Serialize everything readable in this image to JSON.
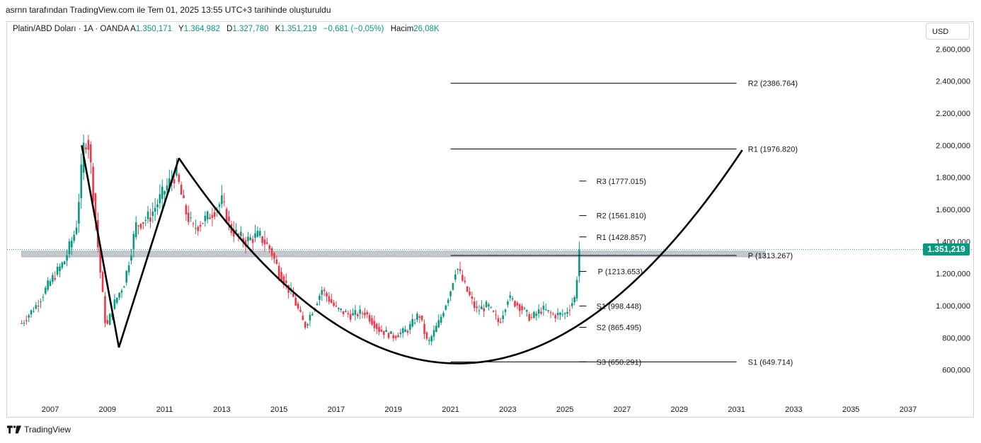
{
  "caption": "asrnn tarafından TradingView.com ile Tem 01, 2025 13:55 UTC+3 tarihinde oluşturuldu",
  "legend": {
    "symbol": "Platin/ABD Doları · 1A · OANDA",
    "open_label": "A",
    "open": "1.350,171",
    "high_label": "Y",
    "high": "1.364,982",
    "low_label": "D",
    "low": "1.327,780",
    "close_label": "K",
    "close": "1.351,219",
    "change": "−0,681 (−0,05%)",
    "volume_label": "Hacim",
    "volume": "26,08K"
  },
  "currency": "USD",
  "last_price": "1.351,219",
  "footer": {
    "brand": "TradingView"
  },
  "colors": {
    "up": "#089981",
    "down": "#f23645",
    "accent": "#089981"
  },
  "chart_data": {
    "type": "candlestick",
    "y_ticks": [
      "600,000",
      "800,000",
      "1.000,000",
      "1.200,000",
      "1.400,000",
      "1.600,000",
      "1.800,000",
      "2.000,000",
      "2.200,000",
      "2.400,000",
      "2.600,000"
    ],
    "y_tick_values": [
      600,
      800,
      1000,
      1200,
      1400,
      1600,
      1800,
      2000,
      2200,
      2400,
      2600
    ],
    "x_ticks": [
      "2007",
      "2009",
      "2011",
      "2013",
      "2015",
      "2017",
      "2019",
      "2021",
      "2023",
      "2025",
      "2027",
      "2029",
      "2031",
      "2033",
      "2035",
      "2037"
    ],
    "x_tick_years": [
      2007,
      2009,
      2011,
      2013,
      2015,
      2017,
      2019,
      2021,
      2023,
      2025,
      2027,
      2029,
      2031,
      2033,
      2035,
      2037
    ],
    "price_series": [
      [
        2006.0,
        890
      ],
      [
        2006.5,
        1000
      ],
      [
        2007.0,
        1150
      ],
      [
        2007.5,
        1280
      ],
      [
        2007.9,
        1480
      ],
      [
        2008.2,
        2050
      ],
      [
        2008.35,
        2000
      ],
      [
        2008.7,
        1300
      ],
      [
        2008.95,
        850
      ],
      [
        2009.2,
        1000
      ],
      [
        2009.6,
        1150
      ],
      [
        2010.0,
        1500
      ],
      [
        2010.5,
        1560
      ],
      [
        2011.0,
        1720
      ],
      [
        2011.4,
        1830
      ],
      [
        2011.7,
        1600
      ],
      [
        2012.0,
        1480
      ],
      [
        2012.5,
        1550
      ],
      [
        2013.0,
        1650
      ],
      [
        2013.3,
        1480
      ],
      [
        2013.8,
        1400
      ],
      [
        2014.3,
        1440
      ],
      [
        2014.7,
        1350
      ],
      [
        2015.0,
        1210
      ],
      [
        2015.5,
        1050
      ],
      [
        2015.9,
        870
      ],
      [
        2016.5,
        1100
      ],
      [
        2017.0,
        980
      ],
      [
        2017.5,
        940
      ],
      [
        2018.0,
        960
      ],
      [
        2018.5,
        850
      ],
      [
        2019.0,
        810
      ],
      [
        2019.5,
        850
      ],
      [
        2019.9,
        950
      ],
      [
        2020.2,
        760
      ],
      [
        2020.6,
        900
      ],
      [
        2021.0,
        1100
      ],
      [
        2021.2,
        1250
      ],
      [
        2021.5,
        1120
      ],
      [
        2021.9,
        970
      ],
      [
        2022.3,
        1000
      ],
      [
        2022.7,
        890
      ],
      [
        2023.0,
        1050
      ],
      [
        2023.4,
        1000
      ],
      [
        2023.8,
        920
      ],
      [
        2024.2,
        980
      ],
      [
        2024.6,
        940
      ],
      [
        2025.0,
        950
      ],
      [
        2025.35,
        1050
      ],
      [
        2025.5,
        1351
      ]
    ],
    "support_zone": {
      "from": 1305,
      "to": 1340
    },
    "pivot_lines": [
      {
        "label": "R2 (2386.764)",
        "value": 2386.764,
        "x_from": 2021.0,
        "x_to": 2031.0,
        "label_x": 2031.4
      },
      {
        "label": "R1 (1976.820)",
        "value": 1976.82,
        "x_from": 2021.0,
        "x_to": 2031.0,
        "label_x": 2031.4
      },
      {
        "label": "P (1313.267)",
        "value": 1313.267,
        "x_from": 2021.0,
        "x_to": 2031.0,
        "label_x": 2031.4
      },
      {
        "label": "S1 (649.714)",
        "value": 649.714,
        "x_from": 2021.0,
        "x_to": 2031.0,
        "label_x": 2031.4
      },
      {
        "label": "R3 (1777.015)",
        "value": 1777.015,
        "x_from": 2025.5,
        "x_to": 2025.75,
        "label_x": 2026.1
      },
      {
        "label": "R2 (1561.810)",
        "value": 1561.81,
        "x_from": 2025.5,
        "x_to": 2025.75,
        "label_x": 2026.1
      },
      {
        "label": "R1 (1428.857)",
        "value": 1428.857,
        "x_from": 2025.5,
        "x_to": 2025.75,
        "label_x": 2026.1
      },
      {
        "label": "P (1213.653)",
        "value": 1213.653,
        "x_from": 2025.5,
        "x_to": 2025.75,
        "label_x": 2026.15
      },
      {
        "label": "S1 (998.448)",
        "value": 998.448,
        "x_from": 2025.5,
        "x_to": 2025.75,
        "label_x": 2026.1
      },
      {
        "label": "S2 (865.495)",
        "value": 865.495,
        "x_from": 2025.5,
        "x_to": 2025.75,
        "label_x": 2026.1
      },
      {
        "label": "S3 (650.291)",
        "value": 650.291,
        "x_from": 2025.5,
        "x_to": 2025.75,
        "label_x": 2026.1
      }
    ],
    "zigzag": [
      [
        2008.1,
        2000
      ],
      [
        2009.4,
        740
      ],
      [
        2011.5,
        1920
      ]
    ],
    "cup_curve": [
      [
        2011.5,
        1920
      ],
      [
        2020.4,
        650
      ],
      [
        2031.2,
        1970
      ]
    ]
  }
}
